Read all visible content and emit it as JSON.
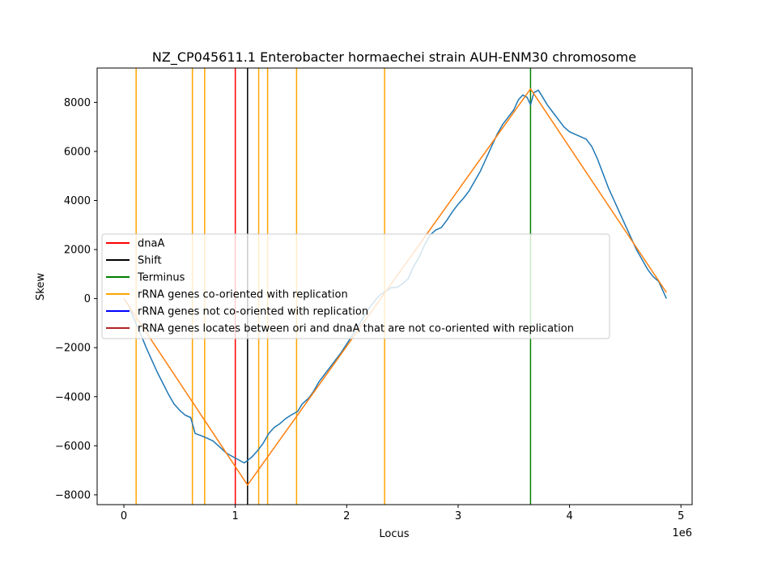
{
  "chart_data": {
    "type": "line",
    "title": "NZ_CP045611.1 Enterobacter hormaechei strain AUH-ENM30 chromosome",
    "xlabel": "Locus",
    "ylabel": "Skew",
    "x_offset_label": "1e6",
    "xlim": [
      -240000,
      5100000
    ],
    "ylim": [
      -8400,
      9400
    ],
    "xticks": [
      0,
      1000000,
      2000000,
      3000000,
      4000000,
      5000000
    ],
    "xtick_labels": [
      "0",
      "1",
      "2",
      "3",
      "4",
      "5"
    ],
    "yticks": [
      -8000,
      -6000,
      -4000,
      -2000,
      0,
      2000,
      4000,
      6000,
      8000
    ],
    "ytick_labels": [
      "−8000",
      "−6000",
      "−4000",
      "−2000",
      "0",
      "2000",
      "4000",
      "6000",
      "8000"
    ],
    "grid": false,
    "legend_placement": "center-left",
    "series": [
      {
        "kind": "skew",
        "color": "#1f77b4",
        "points": [
          [
            0,
            0
          ],
          [
            40000,
            -250
          ],
          [
            80000,
            -700
          ],
          [
            120000,
            -1150
          ],
          [
            160000,
            -1550
          ],
          [
            200000,
            -2000
          ],
          [
            250000,
            -2500
          ],
          [
            300000,
            -3000
          ],
          [
            350000,
            -3450
          ],
          [
            400000,
            -3900
          ],
          [
            450000,
            -4300
          ],
          [
            500000,
            -4550
          ],
          [
            550000,
            -4750
          ],
          [
            600000,
            -4850
          ],
          [
            640000,
            -5500
          ],
          [
            700000,
            -5600
          ],
          [
            750000,
            -5700
          ],
          [
            800000,
            -5800
          ],
          [
            860000,
            -6050
          ],
          [
            920000,
            -6300
          ],
          [
            980000,
            -6450
          ],
          [
            1040000,
            -6600
          ],
          [
            1080000,
            -6700
          ],
          [
            1110000,
            -6600
          ],
          [
            1150000,
            -6450
          ],
          [
            1200000,
            -6200
          ],
          [
            1250000,
            -5900
          ],
          [
            1300000,
            -5500
          ],
          [
            1350000,
            -5250
          ],
          [
            1400000,
            -5100
          ],
          [
            1450000,
            -4900
          ],
          [
            1500000,
            -4750
          ],
          [
            1560000,
            -4600
          ],
          [
            1600000,
            -4300
          ],
          [
            1660000,
            -4050
          ],
          [
            1700000,
            -3800
          ],
          [
            1750000,
            -3400
          ],
          [
            1800000,
            -3100
          ],
          [
            1850000,
            -2800
          ],
          [
            1900000,
            -2500
          ],
          [
            1950000,
            -2200
          ],
          [
            2000000,
            -1850
          ],
          [
            2050000,
            -1500
          ],
          [
            2100000,
            -1150
          ],
          [
            2150000,
            -750
          ],
          [
            2200000,
            -400
          ],
          [
            2250000,
            -100
          ],
          [
            2300000,
            150
          ],
          [
            2350000,
            300
          ],
          [
            2400000,
            450
          ],
          [
            2450000,
            450
          ],
          [
            2500000,
            600
          ],
          [
            2550000,
            800
          ],
          [
            2600000,
            1300
          ],
          [
            2650000,
            1700
          ],
          [
            2700000,
            2200
          ],
          [
            2750000,
            2600
          ],
          [
            2800000,
            2800
          ],
          [
            2850000,
            2900
          ],
          [
            2900000,
            3200
          ],
          [
            2950000,
            3550
          ],
          [
            3000000,
            3850
          ],
          [
            3050000,
            4100
          ],
          [
            3100000,
            4400
          ],
          [
            3150000,
            4800
          ],
          [
            3200000,
            5200
          ],
          [
            3250000,
            5700
          ],
          [
            3300000,
            6200
          ],
          [
            3350000,
            6700
          ],
          [
            3400000,
            7100
          ],
          [
            3450000,
            7400
          ],
          [
            3500000,
            7700
          ],
          [
            3540000,
            8100
          ],
          [
            3580000,
            8300
          ],
          [
            3620000,
            8200
          ],
          [
            3650000,
            7900
          ],
          [
            3680000,
            8400
          ],
          [
            3720000,
            8500
          ],
          [
            3760000,
            8200
          ],
          [
            3800000,
            7900
          ],
          [
            3850000,
            7600
          ],
          [
            3900000,
            7300
          ],
          [
            3950000,
            7000
          ],
          [
            4000000,
            6800
          ],
          [
            4050000,
            6700
          ],
          [
            4100000,
            6600
          ],
          [
            4150000,
            6500
          ],
          [
            4200000,
            6200
          ],
          [
            4250000,
            5700
          ],
          [
            4300000,
            5100
          ],
          [
            4350000,
            4500
          ],
          [
            4400000,
            4000
          ],
          [
            4450000,
            3500
          ],
          [
            4500000,
            3000
          ],
          [
            4550000,
            2500
          ],
          [
            4600000,
            2000
          ],
          [
            4650000,
            1600
          ],
          [
            4700000,
            1200
          ],
          [
            4750000,
            900
          ],
          [
            4800000,
            700
          ],
          [
            4840000,
            300
          ],
          [
            4870000,
            0
          ]
        ]
      },
      {
        "kind": "fit",
        "color": "#ff7f0e",
        "points": [
          [
            0,
            0
          ],
          [
            1110000,
            -7600
          ],
          [
            3650000,
            8550
          ],
          [
            4870000,
            250
          ]
        ]
      }
    ],
    "vlines": [
      {
        "kind": "rrna-co",
        "x": 110000,
        "color": "#ffa500"
      },
      {
        "kind": "rrna-co",
        "x": 615000,
        "color": "#ffa500"
      },
      {
        "kind": "rrna-co",
        "x": 725000,
        "color": "#ffa500"
      },
      {
        "kind": "rrna-co",
        "x": 1210000,
        "color": "#ffa500"
      },
      {
        "kind": "rrna-co",
        "x": 1290000,
        "color": "#ffa500"
      },
      {
        "kind": "rrna-co",
        "x": 1550000,
        "color": "#ffa500"
      },
      {
        "kind": "rrna-co",
        "x": 2340000,
        "color": "#ffa500"
      },
      {
        "kind": "dnaa",
        "x": 1000000,
        "color": "#ff0000"
      },
      {
        "kind": "shift",
        "x": 1110000,
        "color": "#000000"
      },
      {
        "kind": "terminus",
        "x": 3650000,
        "color": "#008000"
      }
    ],
    "legend": [
      {
        "label": "dnaA",
        "color": "#ff0000"
      },
      {
        "label": "Shift",
        "color": "#000000"
      },
      {
        "label": "Terminus",
        "color": "#008000"
      },
      {
        "label": "rRNA genes co-oriented with replication",
        "color": "#ffa500"
      },
      {
        "label": "rRNA genes not co-oriented with replication",
        "color": "#0000ff"
      },
      {
        "label": "rRNA genes locates between ori and dnaA that are not co-oriented with replication",
        "color": "#b22222"
      }
    ]
  }
}
